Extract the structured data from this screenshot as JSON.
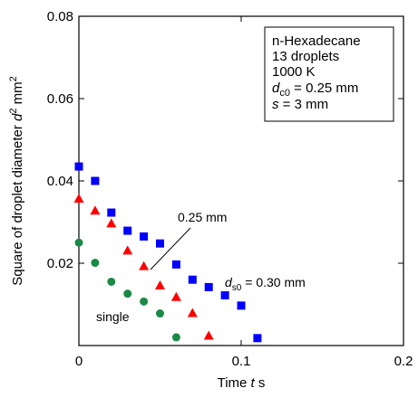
{
  "chart_data": {
    "type": "scatter",
    "title": "",
    "xlabel": "Time t s",
    "ylabel": "Square of droplet diameter d2 mm2",
    "xlim": [
      0,
      0.2
    ],
    "ylim": [
      0,
      0.08
    ],
    "x_ticks": [
      "0",
      "0.1",
      "0.2"
    ],
    "y_ticks": [
      "0.02",
      "0.04",
      "0.06",
      "0.08"
    ],
    "grid": false,
    "series": [
      {
        "marker": "square",
        "color": "#0000ff",
        "points": [
          [
            0.0,
            0.0435
          ],
          [
            0.01,
            0.04
          ],
          [
            0.02,
            0.0323
          ],
          [
            0.03,
            0.0279
          ],
          [
            0.04,
            0.0265
          ],
          [
            0.05,
            0.0248
          ],
          [
            0.06,
            0.0197
          ],
          [
            0.07,
            0.016
          ],
          [
            0.08,
            0.0142
          ],
          [
            0.09,
            0.0122
          ],
          [
            0.1,
            0.0097
          ],
          [
            0.11,
            0.0018
          ]
        ]
      },
      {
        "marker": "triangle",
        "color": "#ff0000",
        "points": [
          [
            0.0,
            0.0356
          ],
          [
            0.01,
            0.0327
          ],
          [
            0.02,
            0.0296
          ],
          [
            0.03,
            0.023
          ],
          [
            0.04,
            0.0192
          ],
          [
            0.05,
            0.0145
          ],
          [
            0.06,
            0.0117
          ],
          [
            0.07,
            0.0078
          ],
          [
            0.08,
            0.0023
          ]
        ]
      },
      {
        "name": "single",
        "marker": "circle",
        "color": "#1a8a45",
        "points": [
          [
            0.0,
            0.025
          ],
          [
            0.01,
            0.0201
          ],
          [
            0.02,
            0.0155
          ],
          [
            0.03,
            0.0126
          ],
          [
            0.04,
            0.0107
          ],
          [
            0.05,
            0.0078
          ],
          [
            0.06,
            0.002
          ]
        ]
      }
    ],
    "annotations": {
      "d025": "0.25 mm",
      "d030_prefix": "d",
      "d030_sub": "s0",
      "d030_suffix": " = 0.30 mm",
      "single": "single"
    },
    "legend_box": {
      "position": "top-right",
      "lines": [
        "n-Hexadecane",
        "13 droplets",
        "1000 K"
      ],
      "dc0_prefix": "d",
      "dc0_sub": "c0",
      "dc0_suffix": " = 0.25 mm",
      "s_prefix": "s",
      "s_suffix": " = 3 mm"
    },
    "axis_label_parts": {
      "x_main": "Time ",
      "x_var": "t",
      "x_unit": " s",
      "y_main": "Square of droplet diameter ",
      "y_var": "d",
      "y_var_sup": "2",
      "y_unit": " mm",
      "y_unit_sup": "2"
    }
  }
}
